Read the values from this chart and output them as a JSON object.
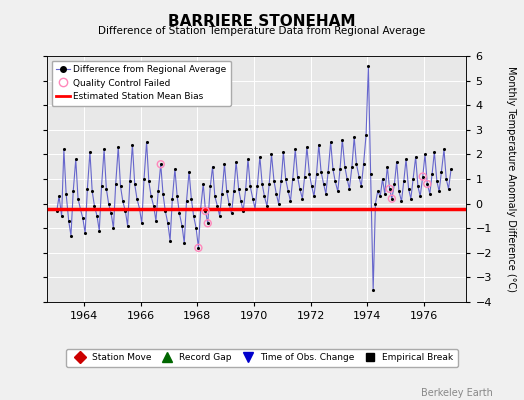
{
  "title": "BARRIERE STONEHAM",
  "subtitle": "Difference of Station Temperature Data from Regional Average",
  "ylabel": "Monthly Temperature Anomaly Difference (°C)",
  "xlabel_years": [
    1964,
    1966,
    1968,
    1970,
    1972,
    1974,
    1976
  ],
  "xlim": [
    1962.7,
    1977.5
  ],
  "ylim": [
    -4,
    6
  ],
  "yticks": [
    -4,
    -3,
    -2,
    -1,
    0,
    1,
    2,
    3,
    4,
    5,
    6
  ],
  "bias_level": -0.2,
  "line_color": "#6666cc",
  "marker_color": "#000000",
  "bias_color": "#ff0000",
  "background_color": "#e8e8e8",
  "plot_bg_color": "#e8e8e8",
  "fig_bg_color": "#f0f0f0",
  "watermark": "Berkeley Earth",
  "time_series": [
    [
      1963.04,
      -0.3
    ],
    [
      1963.12,
      0.3
    ],
    [
      1963.21,
      -0.5
    ],
    [
      1963.29,
      2.2
    ],
    [
      1963.37,
      0.4
    ],
    [
      1963.46,
      -0.7
    ],
    [
      1963.54,
      -1.3
    ],
    [
      1963.62,
      0.5
    ],
    [
      1963.71,
      1.8
    ],
    [
      1963.79,
      0.2
    ],
    [
      1963.87,
      -0.2
    ],
    [
      1963.96,
      -0.6
    ],
    [
      1964.04,
      -1.2
    ],
    [
      1964.12,
      0.6
    ],
    [
      1964.21,
      2.1
    ],
    [
      1964.29,
      0.5
    ],
    [
      1964.37,
      -0.1
    ],
    [
      1964.46,
      -0.5
    ],
    [
      1964.54,
      -1.1
    ],
    [
      1964.62,
      0.7
    ],
    [
      1964.71,
      2.2
    ],
    [
      1964.79,
      0.6
    ],
    [
      1964.87,
      0.0
    ],
    [
      1964.96,
      -0.4
    ],
    [
      1965.04,
      -1.0
    ],
    [
      1965.12,
      0.8
    ],
    [
      1965.21,
      2.3
    ],
    [
      1965.29,
      0.7
    ],
    [
      1965.37,
      0.1
    ],
    [
      1965.46,
      -0.3
    ],
    [
      1965.54,
      -0.9
    ],
    [
      1965.62,
      0.9
    ],
    [
      1965.71,
      2.4
    ],
    [
      1965.79,
      0.8
    ],
    [
      1965.87,
      0.2
    ],
    [
      1965.96,
      -0.2
    ],
    [
      1966.04,
      -0.8
    ],
    [
      1966.12,
      1.0
    ],
    [
      1966.21,
      2.5
    ],
    [
      1966.29,
      0.9
    ],
    [
      1966.37,
      0.3
    ],
    [
      1966.46,
      -0.1
    ],
    [
      1966.54,
      -0.7
    ],
    [
      1966.62,
      0.5
    ],
    [
      1966.71,
      1.6
    ],
    [
      1966.79,
      0.4
    ],
    [
      1966.87,
      -0.3
    ],
    [
      1966.96,
      -0.8
    ],
    [
      1967.04,
      -1.5
    ],
    [
      1967.12,
      0.2
    ],
    [
      1967.21,
      1.4
    ],
    [
      1967.29,
      0.3
    ],
    [
      1967.37,
      -0.4
    ],
    [
      1967.46,
      -0.9
    ],
    [
      1967.54,
      -1.6
    ],
    [
      1967.62,
      0.1
    ],
    [
      1967.71,
      1.3
    ],
    [
      1967.79,
      0.2
    ],
    [
      1967.87,
      -0.5
    ],
    [
      1967.96,
      -1.0
    ],
    [
      1968.04,
      -1.8
    ],
    [
      1968.12,
      -0.2
    ],
    [
      1968.21,
      0.8
    ],
    [
      1968.29,
      -0.3
    ],
    [
      1968.37,
      -0.8
    ],
    [
      1968.46,
      0.7
    ],
    [
      1968.54,
      1.5
    ],
    [
      1968.62,
      0.3
    ],
    [
      1968.71,
      -0.1
    ],
    [
      1968.79,
      -0.5
    ],
    [
      1968.87,
      0.4
    ],
    [
      1968.96,
      1.6
    ],
    [
      1969.04,
      0.5
    ],
    [
      1969.12,
      0.0
    ],
    [
      1969.21,
      -0.4
    ],
    [
      1969.29,
      0.5
    ],
    [
      1969.37,
      1.7
    ],
    [
      1969.46,
      0.6
    ],
    [
      1969.54,
      0.1
    ],
    [
      1969.62,
      -0.3
    ],
    [
      1969.71,
      0.6
    ],
    [
      1969.79,
      1.8
    ],
    [
      1969.87,
      0.7
    ],
    [
      1969.96,
      0.2
    ],
    [
      1970.04,
      -0.2
    ],
    [
      1970.12,
      0.7
    ],
    [
      1970.21,
      1.9
    ],
    [
      1970.29,
      0.8
    ],
    [
      1970.37,
      0.3
    ],
    [
      1970.46,
      -0.1
    ],
    [
      1970.54,
      0.8
    ],
    [
      1970.62,
      2.0
    ],
    [
      1970.71,
      0.9
    ],
    [
      1970.79,
      0.4
    ],
    [
      1970.87,
      0.0
    ],
    [
      1970.96,
      0.9
    ],
    [
      1971.04,
      2.1
    ],
    [
      1971.12,
      1.0
    ],
    [
      1971.21,
      0.5
    ],
    [
      1971.29,
      0.1
    ],
    [
      1971.37,
      1.0
    ],
    [
      1971.46,
      2.2
    ],
    [
      1971.54,
      1.1
    ],
    [
      1971.62,
      0.6
    ],
    [
      1971.71,
      0.2
    ],
    [
      1971.79,
      1.1
    ],
    [
      1971.87,
      2.3
    ],
    [
      1971.96,
      1.2
    ],
    [
      1972.04,
      0.7
    ],
    [
      1972.12,
      0.3
    ],
    [
      1972.21,
      1.2
    ],
    [
      1972.29,
      2.4
    ],
    [
      1972.37,
      1.3
    ],
    [
      1972.46,
      0.8
    ],
    [
      1972.54,
      0.4
    ],
    [
      1972.62,
      1.3
    ],
    [
      1972.71,
      2.5
    ],
    [
      1972.79,
      1.4
    ],
    [
      1972.87,
      0.9
    ],
    [
      1972.96,
      0.5
    ],
    [
      1973.04,
      1.4
    ],
    [
      1973.12,
      2.6
    ],
    [
      1973.21,
      1.5
    ],
    [
      1973.29,
      1.0
    ],
    [
      1973.37,
      0.6
    ],
    [
      1973.46,
      1.5
    ],
    [
      1973.54,
      2.7
    ],
    [
      1973.62,
      1.6
    ],
    [
      1973.71,
      1.1
    ],
    [
      1973.79,
      0.7
    ],
    [
      1973.87,
      1.6
    ],
    [
      1973.96,
      2.8
    ],
    [
      1974.04,
      5.6
    ],
    [
      1974.12,
      1.2
    ],
    [
      1974.21,
      -3.5
    ],
    [
      1974.29,
      0.0
    ],
    [
      1974.37,
      0.5
    ],
    [
      1974.46,
      0.3
    ],
    [
      1974.54,
      1.0
    ],
    [
      1974.62,
      0.4
    ],
    [
      1974.71,
      1.5
    ],
    [
      1974.79,
      0.6
    ],
    [
      1974.87,
      0.2
    ],
    [
      1974.96,
      0.8
    ],
    [
      1975.04,
      1.7
    ],
    [
      1975.12,
      0.5
    ],
    [
      1975.21,
      0.1
    ],
    [
      1975.29,
      0.9
    ],
    [
      1975.37,
      1.8
    ],
    [
      1975.46,
      0.6
    ],
    [
      1975.54,
      0.2
    ],
    [
      1975.62,
      1.0
    ],
    [
      1975.71,
      1.9
    ],
    [
      1975.79,
      0.7
    ],
    [
      1975.87,
      0.3
    ],
    [
      1975.96,
      1.1
    ],
    [
      1976.04,
      2.0
    ],
    [
      1976.12,
      0.8
    ],
    [
      1976.21,
      0.4
    ],
    [
      1976.29,
      1.2
    ],
    [
      1976.37,
      2.1
    ],
    [
      1976.46,
      0.9
    ],
    [
      1976.54,
      0.5
    ],
    [
      1976.62,
      1.3
    ],
    [
      1976.71,
      2.2
    ],
    [
      1976.79,
      1.0
    ],
    [
      1976.87,
      0.6
    ],
    [
      1976.96,
      1.4
    ]
  ],
  "qc_failed": [
    [
      1966.71,
      1.6
    ],
    [
      1968.04,
      -1.8
    ],
    [
      1968.29,
      -0.3
    ],
    [
      1968.37,
      -0.8
    ],
    [
      1974.79,
      0.6
    ],
    [
      1974.87,
      0.2
    ],
    [
      1975.96,
      1.1
    ],
    [
      1976.12,
      0.8
    ]
  ]
}
